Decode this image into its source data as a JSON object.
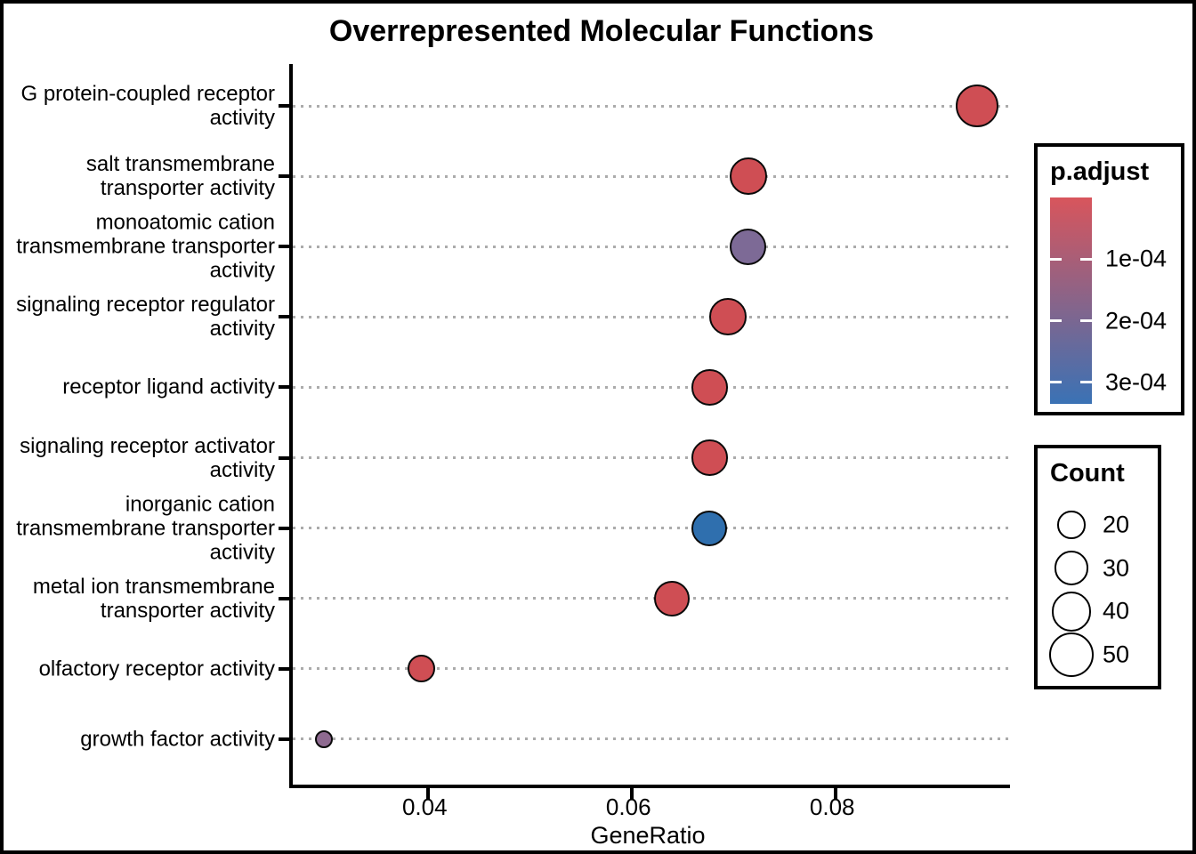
{
  "chart_data": {
    "type": "scatter",
    "title": "Overrepresented Molecular Functions",
    "xlabel": "GeneRatio",
    "ylabel": "",
    "xlim": [
      0.0267,
      0.0971
    ],
    "x_ticks": [
      0.04,
      0.06,
      0.08
    ],
    "x_tick_labels": [
      "0.04",
      "0.06",
      "0.08"
    ],
    "grid": "horizontal dotted",
    "grid_color": "#ABABAB",
    "categories": [
      "G protein-coupled receptor activity",
      "salt transmembrane transporter activity",
      "monoatomic cation transmembrane transporter activity",
      "signaling receptor regulator activity",
      "receptor ligand activity",
      "signaling receptor activator activity",
      "inorganic cation transmembrane transporter activity",
      "metal ion transmembrane transporter activity",
      "olfactory receptor activity",
      "growth factor activity"
    ],
    "points": [
      {
        "label": "G protein-coupled receptor activity",
        "label_lines": [
          "G protein-coupled receptor",
          "activity"
        ],
        "gene_ratio": 0.0939,
        "count": 46,
        "p_adjust_approx": 2e-05,
        "color": "#CF4E54"
      },
      {
        "label": "salt transmembrane transporter activity",
        "label_lines": [
          "salt transmembrane",
          "transporter activity"
        ],
        "gene_ratio": 0.0714,
        "count": 35,
        "p_adjust_approx": 3e-05,
        "color": "#CF4E54"
      },
      {
        "label": "monoatomic cation transmembrane transporter activity",
        "label_lines": [
          "monoatomic cation",
          "transmembrane transporter",
          "activity"
        ],
        "gene_ratio": 0.0714,
        "count": 34,
        "p_adjust_approx": 0.00017,
        "color": "#7D6A96"
      },
      {
        "label": "signaling receptor regulator activity",
        "label_lines": [
          "signaling receptor regulator",
          "activity"
        ],
        "gene_ratio": 0.0694,
        "count": 35,
        "p_adjust_approx": 3e-05,
        "color": "#CF4E54"
      },
      {
        "label": "receptor ligand activity",
        "label_lines": [
          "receptor ligand activity"
        ],
        "gene_ratio": 0.0676,
        "count": 33,
        "p_adjust_approx": 3e-05,
        "color": "#CF4E54"
      },
      {
        "label": "signaling receptor activator activity",
        "label_lines": [
          "signaling receptor activator",
          "activity"
        ],
        "gene_ratio": 0.0676,
        "count": 33,
        "p_adjust_approx": 3e-05,
        "color": "#CF4E54"
      },
      {
        "label": "inorganic cation transmembrane transporter activity",
        "label_lines": [
          "inorganic cation",
          "transmembrane transporter",
          "activity"
        ],
        "gene_ratio": 0.0676,
        "count": 32,
        "p_adjust_approx": 0.00032,
        "color": "#2F6FAE"
      },
      {
        "label": "metal ion transmembrane transporter activity",
        "label_lines": [
          "metal ion transmembrane",
          "transporter activity"
        ],
        "gene_ratio": 0.0639,
        "count": 32,
        "p_adjust_approx": 3e-05,
        "color": "#CF4E54"
      },
      {
        "label": "olfactory receptor activity",
        "label_lines": [
          "olfactory receptor activity"
        ],
        "gene_ratio": 0.0393,
        "count": 19,
        "p_adjust_approx": 4e-05,
        "color": "#CF4E54"
      },
      {
        "label": "growth factor activity",
        "label_lines": [
          "growth factor activity"
        ],
        "gene_ratio": 0.0298,
        "count": 8,
        "p_adjust_approx": 0.00014,
        "color": "#8E6A90"
      }
    ],
    "legends": {
      "color": {
        "title": "p.adjust",
        "position": "right-top",
        "bar_min": 0,
        "bar_max": 0.000335,
        "ticks": [
          0.0001,
          0.0002,
          0.0003
        ],
        "tick_labels": [
          "1e-04",
          "2e-04",
          "3e-04"
        ],
        "top_color": "#D8555C",
        "mid_color": "#896489",
        "bottom_color": "#3A72B5"
      },
      "size": {
        "title": "Count",
        "position": "right-bottom",
        "values": [
          20,
          30,
          40,
          50
        ],
        "value_labels": [
          "20",
          "30",
          "40",
          "50"
        ]
      }
    }
  }
}
